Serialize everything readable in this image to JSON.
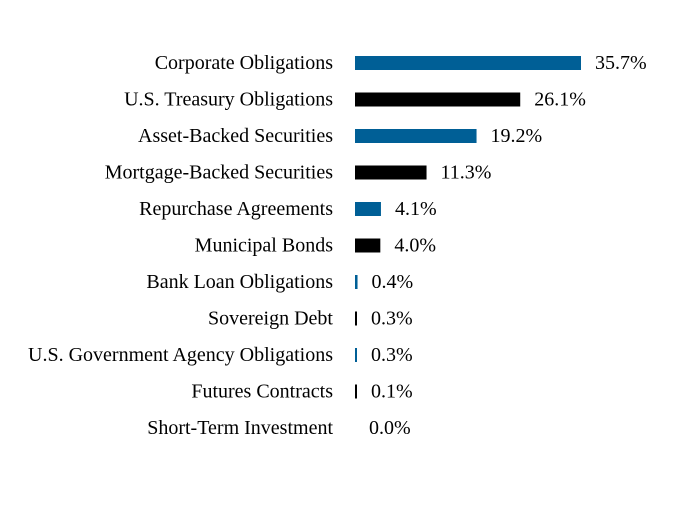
{
  "chart_data": {
    "type": "bar",
    "orientation": "horizontal",
    "categories": [
      "Corporate Obligations",
      "U.S. Treasury Obligations",
      "Asset-Backed Securities",
      "Mortgage-Backed Securities",
      "Repurchase Agreements",
      "Municipal Bonds",
      "Bank Loan Obligations",
      "Sovereign Debt",
      "U.S. Government Agency Obligations",
      "Futures Contracts",
      "Short-Term Investment"
    ],
    "values": [
      35.7,
      26.1,
      19.2,
      11.3,
      4.1,
      4.0,
      0.4,
      0.3,
      0.3,
      0.1,
      0.0
    ],
    "value_labels": [
      "35.7%",
      "26.1%",
      "19.2%",
      "11.3%",
      "4.1%",
      "4.0%",
      "0.4%",
      "0.3%",
      "0.3%",
      "0.1%",
      "0.0%"
    ],
    "bar_colors": [
      "#005f96",
      "#000000",
      "#005f96",
      "#000000",
      "#005f96",
      "#000000",
      "#005f96",
      "#000000",
      "#005f96",
      "#000000",
      "#005f96"
    ],
    "title": "",
    "xlabel": "",
    "ylabel": "",
    "xlim": [
      0,
      35.7
    ],
    "grid": false,
    "legend": "none"
  }
}
